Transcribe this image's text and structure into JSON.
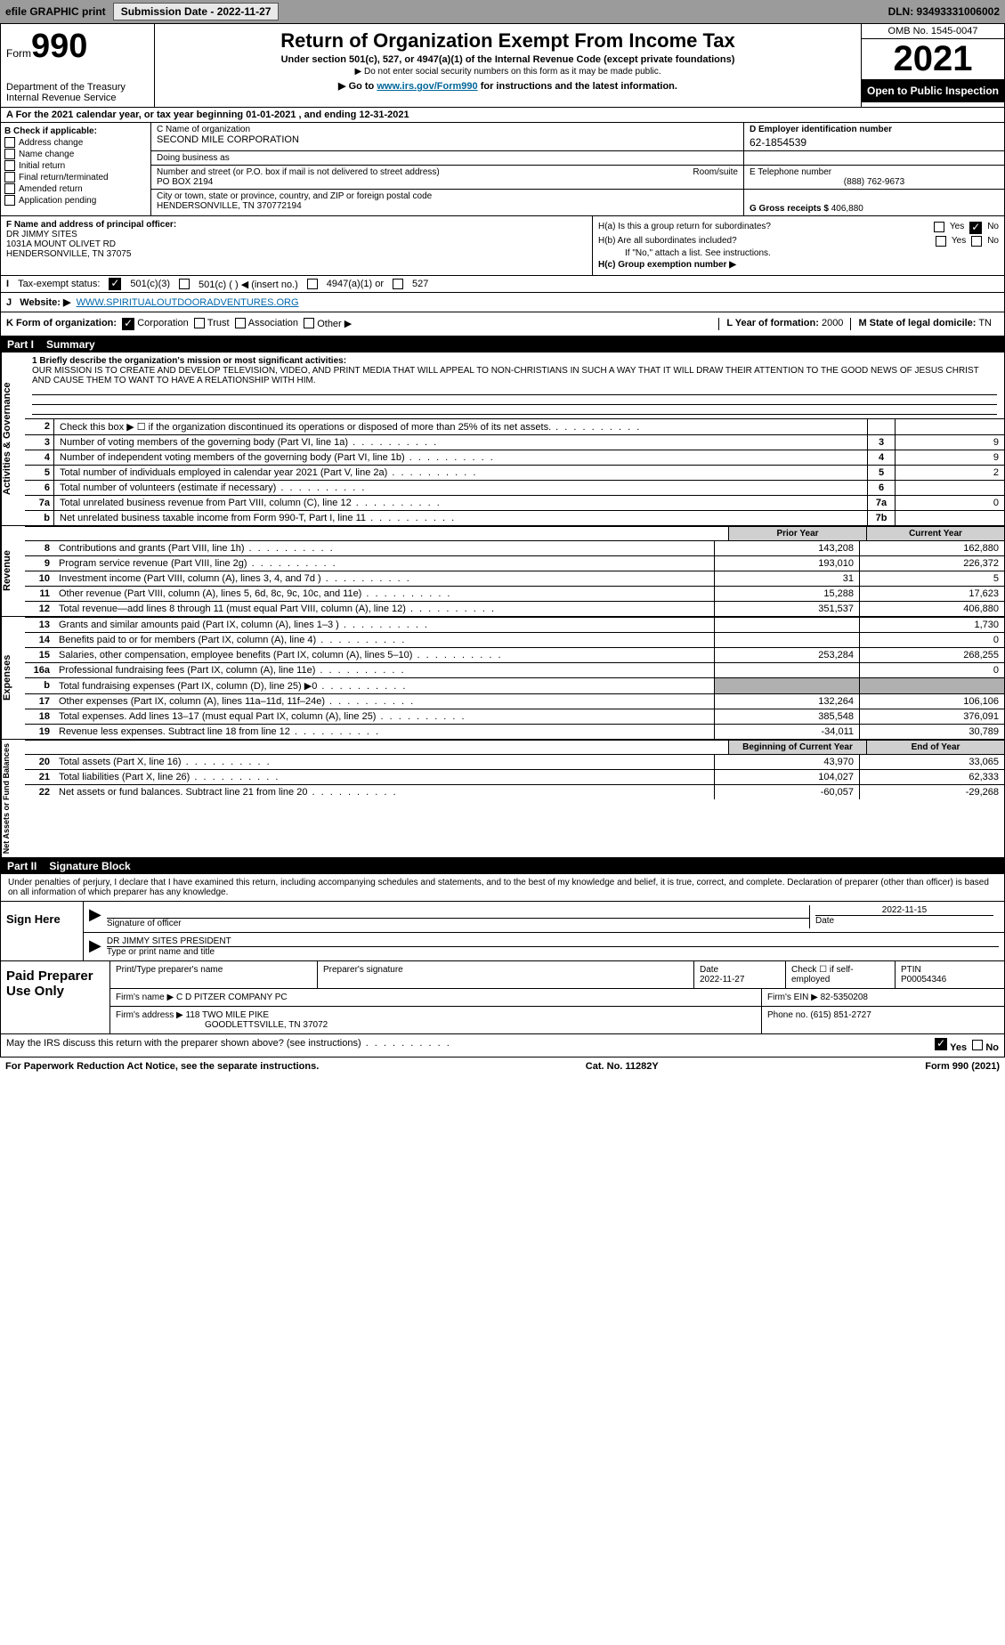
{
  "top_bar": {
    "efile_label": "efile GRAPHIC print",
    "submission_label": "Submission Date - 2022-11-27",
    "dln": "DLN: 93493331006002"
  },
  "header": {
    "form_word": "Form",
    "form_number": "990",
    "dept": "Department of the Treasury",
    "irs": "Internal Revenue Service",
    "title": "Return of Organization Exempt From Income Tax",
    "subtitle": "Under section 501(c), 527, or 4947(a)(1) of the Internal Revenue Code (except private foundations)",
    "note1": "▶ Do not enter social security numbers on this form as it may be made public.",
    "note2_pre": "▶ Go to ",
    "note2_link": "www.irs.gov/Form990",
    "note2_post": " for instructions and the latest information.",
    "omb": "OMB No. 1545-0047",
    "tax_year": "2021",
    "open_public": "Open to Public Inspection"
  },
  "row_a": "A For the 2021 calendar year, or tax year beginning 01-01-2021    , and ending 12-31-2021",
  "section_b": {
    "label": "B Check if applicable:",
    "items": [
      "Address change",
      "Name change",
      "Initial return",
      "Final return/terminated",
      "Amended return",
      "Application pending"
    ]
  },
  "section_c": {
    "name_label": "C Name of organization",
    "name": "SECOND MILE CORPORATION",
    "dba_label": "Doing business as",
    "addr_label": "Number and street (or P.O. box if mail is not delivered to street address)",
    "room_label": "Room/suite",
    "addr": "PO BOX 2194",
    "city_label": "City or town, state or province, country, and ZIP or foreign postal code",
    "city": "HENDERSONVILLE, TN  370772194"
  },
  "section_d": {
    "label": "D Employer identification number",
    "value": "62-1854539"
  },
  "section_e": {
    "label": "E Telephone number",
    "value": "(888) 762-9673"
  },
  "section_g": {
    "label": "G Gross receipts $",
    "value": "406,880"
  },
  "section_f": {
    "label": "F Name and address of principal officer:",
    "line1": "DR JIMMY SITES",
    "line2": "1031A MOUNT OLIVET RD",
    "line3": "HENDERSONVILLE, TN  37075"
  },
  "section_h": {
    "ha_label": "H(a)  Is this a group return for subordinates?",
    "hb_label": "H(b)  Are all subordinates included?",
    "hb_note": "If \"No,\" attach a list. See instructions.",
    "hc_label": "H(c)  Group exemption number ▶",
    "yes": "Yes",
    "no": "No"
  },
  "row_i": {
    "label": "Tax-exempt status:",
    "opt1": "501(c)(3)",
    "opt2": "501(c) (  ) ◀ (insert no.)",
    "opt3": "4947(a)(1) or",
    "opt4": "527"
  },
  "row_j": {
    "label": "Website: ▶",
    "value": "WWW.SPIRITUALOUTDOORADVENTURES.ORG"
  },
  "row_k": {
    "label": "K Form of organization:",
    "opts": [
      "Corporation",
      "Trust",
      "Association",
      "Other ▶"
    ],
    "l_label": "L Year of formation:",
    "l_val": "2000",
    "m_label": "M State of legal domicile:",
    "m_val": "TN"
  },
  "part1": {
    "num": "Part I",
    "title": "Summary"
  },
  "mission": {
    "line1_label": "1 Briefly describe the organization's mission or most significant activities:",
    "text": "OUR MISSION IS TO CREATE AND DEVELOP TELEVISION, VIDEO, AND PRINT MEDIA THAT WILL APPEAL TO NON-CHRISTIANS IN SUCH A WAY THAT IT WILL DRAW THEIR ATTENTION TO THE GOOD NEWS OF JESUS CHRIST AND CAUSE THEM TO WANT TO HAVE A RELATIONSHIP WITH HIM."
  },
  "side_labels": {
    "ag": "Activities & Governance",
    "rev": "Revenue",
    "exp": "Expenses",
    "na": "Net Assets or Fund Balances"
  },
  "lines_ag": [
    {
      "n": "2",
      "t": "Check this box ▶ ☐ if the organization discontinued its operations or disposed of more than 25% of its net assets.",
      "box": "",
      "val": ""
    },
    {
      "n": "3",
      "t": "Number of voting members of the governing body (Part VI, line 1a)",
      "box": "3",
      "val": "9"
    },
    {
      "n": "4",
      "t": "Number of independent voting members of the governing body (Part VI, line 1b)",
      "box": "4",
      "val": "9"
    },
    {
      "n": "5",
      "t": "Total number of individuals employed in calendar year 2021 (Part V, line 2a)",
      "box": "5",
      "val": "2"
    },
    {
      "n": "6",
      "t": "Total number of volunteers (estimate if necessary)",
      "box": "6",
      "val": ""
    },
    {
      "n": "7a",
      "t": "Total unrelated business revenue from Part VIII, column (C), line 12",
      "box": "7a",
      "val": "0"
    },
    {
      "n": "b",
      "t": "Net unrelated business taxable income from Form 990-T, Part I, line 11",
      "box": "7b",
      "val": ""
    }
  ],
  "col_headers": {
    "py": "Prior Year",
    "cy": "Current Year"
  },
  "lines_rev": [
    {
      "n": "8",
      "t": "Contributions and grants (Part VIII, line 1h)",
      "py": "143,208",
      "cy": "162,880"
    },
    {
      "n": "9",
      "t": "Program service revenue (Part VIII, line 2g)",
      "py": "193,010",
      "cy": "226,372"
    },
    {
      "n": "10",
      "t": "Investment income (Part VIII, column (A), lines 3, 4, and 7d )",
      "py": "31",
      "cy": "5"
    },
    {
      "n": "11",
      "t": "Other revenue (Part VIII, column (A), lines 5, 6d, 8c, 9c, 10c, and 11e)",
      "py": "15,288",
      "cy": "17,623"
    },
    {
      "n": "12",
      "t": "Total revenue—add lines 8 through 11 (must equal Part VIII, column (A), line 12)",
      "py": "351,537",
      "cy": "406,880"
    }
  ],
  "lines_exp": [
    {
      "n": "13",
      "t": "Grants and similar amounts paid (Part IX, column (A), lines 1–3 )",
      "py": "",
      "cy": "1,730"
    },
    {
      "n": "14",
      "t": "Benefits paid to or for members (Part IX, column (A), line 4)",
      "py": "",
      "cy": "0"
    },
    {
      "n": "15",
      "t": "Salaries, other compensation, employee benefits (Part IX, column (A), lines 5–10)",
      "py": "253,284",
      "cy": "268,255"
    },
    {
      "n": "16a",
      "t": "Professional fundraising fees (Part IX, column (A), line 11e)",
      "py": "",
      "cy": "0"
    },
    {
      "n": "b",
      "t": "Total fundraising expenses (Part IX, column (D), line 25) ▶0",
      "py": "SHADE",
      "cy": "SHADE"
    },
    {
      "n": "17",
      "t": "Other expenses (Part IX, column (A), lines 11a–11d, 11f–24e)",
      "py": "132,264",
      "cy": "106,106"
    },
    {
      "n": "18",
      "t": "Total expenses. Add lines 13–17 (must equal Part IX, column (A), line 25)",
      "py": "385,548",
      "cy": "376,091"
    },
    {
      "n": "19",
      "t": "Revenue less expenses. Subtract line 18 from line 12",
      "py": "-34,011",
      "cy": "30,789"
    }
  ],
  "col_headers2": {
    "py": "Beginning of Current Year",
    "cy": "End of Year"
  },
  "lines_na": [
    {
      "n": "20",
      "t": "Total assets (Part X, line 16)",
      "py": "43,970",
      "cy": "33,065"
    },
    {
      "n": "21",
      "t": "Total liabilities (Part X, line 26)",
      "py": "104,027",
      "cy": "62,333"
    },
    {
      "n": "22",
      "t": "Net assets or fund balances. Subtract line 21 from line 20",
      "py": "-60,057",
      "cy": "-29,268"
    }
  ],
  "part2": {
    "num": "Part II",
    "title": "Signature Block"
  },
  "sig": {
    "decl": "Under penalties of perjury, I declare that I have examined this return, including accompanying schedules and statements, and to the best of my knowledge and belief, it is true, correct, and complete. Declaration of preparer (other than officer) is based on all information of which preparer has any knowledge.",
    "sign_here": "Sign Here",
    "sig_label": "Signature of officer",
    "date_label": "Date",
    "date_val": "2022-11-15",
    "name_label": "Type or print name and title",
    "name_val": "DR JIMMY SITES  PRESIDENT"
  },
  "paid": {
    "label": "Paid Preparer Use Only",
    "r1": {
      "c1_label": "Print/Type preparer's name",
      "c2_label": "Preparer's signature",
      "c3_label": "Date",
      "c3_val": "2022-11-27",
      "c4_label": "Check ☐ if self-employed",
      "c5_label": "PTIN",
      "c5_val": "P00054346"
    },
    "r2": {
      "c1_label": "Firm's name   ▶",
      "c1_val": "C D PITZER COMPANY PC",
      "c2_label": "Firm's EIN ▶",
      "c2_val": "82-5350208"
    },
    "r3": {
      "c1_label": "Firm's address ▶",
      "c1_val1": "118 TWO MILE PIKE",
      "c1_val2": "GOODLETTSVILLE, TN  37072",
      "c2_label": "Phone no.",
      "c2_val": "(615) 851-2727"
    }
  },
  "footer": {
    "discuss": "May the IRS discuss this return with the preparer shown above? (see instructions)",
    "yes": "Yes",
    "no": "No",
    "paperwork": "For Paperwork Reduction Act Notice, see the separate instructions.",
    "cat": "Cat. No. 11282Y",
    "form": "Form 990 (2021)"
  }
}
